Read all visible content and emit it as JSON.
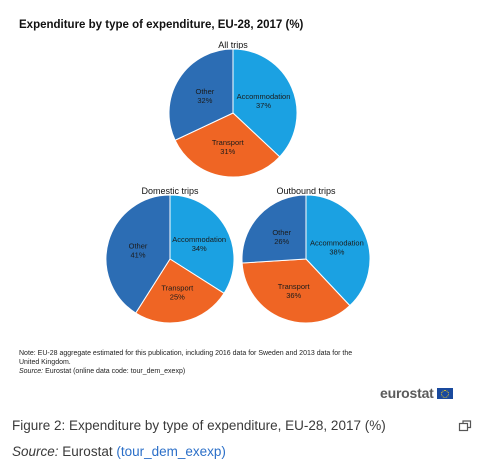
{
  "chart_data": {
    "type": "pie",
    "title": "Expenditure by type of expenditure, EU-28, 2017 (%)",
    "colors": {
      "Accommodation": "#1ba1e2",
      "Transport": "#ef6524",
      "Other": "#2c6db4"
    },
    "pies": [
      {
        "name": "All trips",
        "slices": [
          {
            "label": "Accommodation",
            "value": 37
          },
          {
            "label": "Transport",
            "value": 31
          },
          {
            "label": "Other",
            "value": 32
          }
        ]
      },
      {
        "name": "Domestic trips",
        "slices": [
          {
            "label": "Accommodation",
            "value": 34
          },
          {
            "label": "Transport",
            "value": 25
          },
          {
            "label": "Other",
            "value": 41
          }
        ]
      },
      {
        "name": "Outbound trips",
        "slices": [
          {
            "label": "Accommodation",
            "value": 38
          },
          {
            "label": "Transport",
            "value": 36
          },
          {
            "label": "Other",
            "value": 26
          }
        ]
      }
    ]
  },
  "note": {
    "text": "Note: EU-28 aggregate estimated for this publication, including 2016 data for Sweden and 2013 data for the United Kingdom.",
    "source_label": "Source:",
    "source_text": "Eurostat (online data code: tour_dem_exexp)"
  },
  "brand": {
    "name": "eurostat",
    "flag_icon": "eu-flag-icon"
  },
  "caption": {
    "text": "Figure 2: Expenditure by type of expenditure, EU-28, 2017 (%)"
  },
  "source": {
    "label": "Source:",
    "text": "Eurostat",
    "link_text": "(tour_dem_exexp)"
  }
}
